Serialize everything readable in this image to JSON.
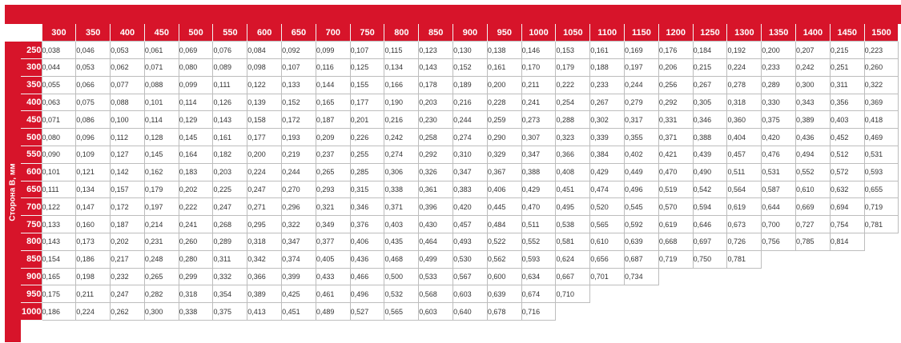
{
  "table": {
    "row_axis_title": "Сторона В, мм",
    "columns": [
      "300",
      "350",
      "400",
      "450",
      "500",
      "550",
      "600",
      "650",
      "700",
      "750",
      "800",
      "850",
      "900",
      "950",
      "1000",
      "1050",
      "1100",
      "1150",
      "1200",
      "1250",
      "1300",
      "1350",
      "1400",
      "1450",
      "1500"
    ],
    "rows": [
      {
        "label": "250",
        "values": [
          "0,038",
          "0,046",
          "0,053",
          "0,061",
          "0,069",
          "0,076",
          "0,084",
          "0,092",
          "0,099",
          "0,107",
          "0,115",
          "0,123",
          "0,130",
          "0,138",
          "0,146",
          "0,153",
          "0,161",
          "0,169",
          "0,176",
          "0,184",
          "0,192",
          "0,200",
          "0,207",
          "0,215",
          "0,223"
        ]
      },
      {
        "label": "300",
        "values": [
          "0,044",
          "0,053",
          "0,062",
          "0,071",
          "0,080",
          "0,089",
          "0,098",
          "0,107",
          "0,116",
          "0,125",
          "0,134",
          "0,143",
          "0,152",
          "0,161",
          "0,170",
          "0,179",
          "0,188",
          "0,197",
          "0,206",
          "0,215",
          "0,224",
          "0,233",
          "0,242",
          "0,251",
          "0,260"
        ]
      },
      {
        "label": "350",
        "values": [
          "0,055",
          "0,066",
          "0,077",
          "0,088",
          "0,099",
          "0,111",
          "0,122",
          "0,133",
          "0,144",
          "0,155",
          "0,166",
          "0,178",
          "0,189",
          "0,200",
          "0,211",
          "0,222",
          "0,233",
          "0,244",
          "0,256",
          "0,267",
          "0,278",
          "0,289",
          "0,300",
          "0,311",
          "0,322"
        ]
      },
      {
        "label": "400",
        "values": [
          "0,063",
          "0,075",
          "0,088",
          "0,101",
          "0,114",
          "0,126",
          "0,139",
          "0,152",
          "0,165",
          "0,177",
          "0,190",
          "0,203",
          "0,216",
          "0,228",
          "0,241",
          "0,254",
          "0,267",
          "0,279",
          "0,292",
          "0,305",
          "0,318",
          "0,330",
          "0,343",
          "0,356",
          "0,369"
        ]
      },
      {
        "label": "450",
        "values": [
          "0,071",
          "0,086",
          "0,100",
          "0,114",
          "0,129",
          "0,143",
          "0,158",
          "0,172",
          "0,187",
          "0,201",
          "0,216",
          "0,230",
          "0,244",
          "0,259",
          "0,273",
          "0,288",
          "0,302",
          "0,317",
          "0,331",
          "0,346",
          "0,360",
          "0,375",
          "0,389",
          "0,403",
          "0,418"
        ]
      },
      {
        "label": "500",
        "values": [
          "0,080",
          "0,096",
          "0,112",
          "0,128",
          "0,145",
          "0,161",
          "0,177",
          "0,193",
          "0,209",
          "0,226",
          "0,242",
          "0,258",
          "0,274",
          "0,290",
          "0,307",
          "0,323",
          "0,339",
          "0,355",
          "0,371",
          "0,388",
          "0,404",
          "0,420",
          "0,436",
          "0,452",
          "0,469"
        ]
      },
      {
        "label": "550",
        "values": [
          "0,090",
          "0,109",
          "0,127",
          "0,145",
          "0,164",
          "0,182",
          "0,200",
          "0,219",
          "0,237",
          "0,255",
          "0,274",
          "0,292",
          "0,310",
          "0,329",
          "0,347",
          "0,366",
          "0,384",
          "0,402",
          "0,421",
          "0,439",
          "0,457",
          "0,476",
          "0,494",
          "0,512",
          "0,531"
        ]
      },
      {
        "label": "600",
        "values": [
          "0,101",
          "0,121",
          "0,142",
          "0,162",
          "0,183",
          "0,203",
          "0,224",
          "0,244",
          "0,265",
          "0,285",
          "0,306",
          "0,326",
          "0,347",
          "0,367",
          "0,388",
          "0,408",
          "0,429",
          "0,449",
          "0,470",
          "0,490",
          "0,511",
          "0,531",
          "0,552",
          "0,572",
          "0,593"
        ]
      },
      {
        "label": "650",
        "values": [
          "0,111",
          "0,134",
          "0,157",
          "0,179",
          "0,202",
          "0,225",
          "0,247",
          "0,270",
          "0,293",
          "0,315",
          "0,338",
          "0,361",
          "0,383",
          "0,406",
          "0,429",
          "0,451",
          "0,474",
          "0,496",
          "0,519",
          "0,542",
          "0,564",
          "0,587",
          "0,610",
          "0,632",
          "0,655"
        ]
      },
      {
        "label": "700",
        "values": [
          "0,122",
          "0,147",
          "0,172",
          "0,197",
          "0,222",
          "0,247",
          "0,271",
          "0,296",
          "0,321",
          "0,346",
          "0,371",
          "0,396",
          "0,420",
          "0,445",
          "0,470",
          "0,495",
          "0,520",
          "0,545",
          "0,570",
          "0,594",
          "0,619",
          "0,644",
          "0,669",
          "0,694",
          "0,719"
        ]
      },
      {
        "label": "750",
        "values": [
          "0,133",
          "0,160",
          "0,187",
          "0,214",
          "0,241",
          "0,268",
          "0,295",
          "0,322",
          "0,349",
          "0,376",
          "0,403",
          "0,430",
          "0,457",
          "0,484",
          "0,511",
          "0,538",
          "0,565",
          "0,592",
          "0,619",
          "0,646",
          "0,673",
          "0,700",
          "0,727",
          "0,754",
          "0,781"
        ]
      },
      {
        "label": "800",
        "values": [
          "0,143",
          "0,173",
          "0,202",
          "0,231",
          "0,260",
          "0,289",
          "0,318",
          "0,347",
          "0,377",
          "0,406",
          "0,435",
          "0,464",
          "0,493",
          "0,522",
          "0,552",
          "0,581",
          "0,610",
          "0,639",
          "0,668",
          "0,697",
          "0,726",
          "0,756",
          "0,785",
          "0,814"
        ]
      },
      {
        "label": "850",
        "values": [
          "0,154",
          "0,186",
          "0,217",
          "0,248",
          "0,280",
          "0,311",
          "0,342",
          "0,374",
          "0,405",
          "0,436",
          "0,468",
          "0,499",
          "0,530",
          "0,562",
          "0,593",
          "0,624",
          "0,656",
          "0,687",
          "0,719",
          "0,750",
          "0,781"
        ]
      },
      {
        "label": "900",
        "values": [
          "0,165",
          "0,198",
          "0,232",
          "0,265",
          "0,299",
          "0,332",
          "0,366",
          "0,399",
          "0,433",
          "0,466",
          "0,500",
          "0,533",
          "0,567",
          "0,600",
          "0,634",
          "0,667",
          "0,701",
          "0,734"
        ]
      },
      {
        "label": "950",
        "values": [
          "0,175",
          "0,211",
          "0,247",
          "0,282",
          "0,318",
          "0,354",
          "0,389",
          "0,425",
          "0,461",
          "0,496",
          "0,532",
          "0,568",
          "0,603",
          "0,639",
          "0,674",
          "0,710"
        ]
      },
      {
        "label": "1000",
        "values": [
          "0,186",
          "0,224",
          "0,262",
          "0,300",
          "0,338",
          "0,375",
          "0,413",
          "0,451",
          "0,489",
          "0,527",
          "0,565",
          "0,603",
          "0,640",
          "0,678",
          "0,716"
        ]
      }
    ]
  },
  "colors": {
    "accent": "#d7142a",
    "cell_border": "#bdbdbd",
    "text": "#333333"
  }
}
